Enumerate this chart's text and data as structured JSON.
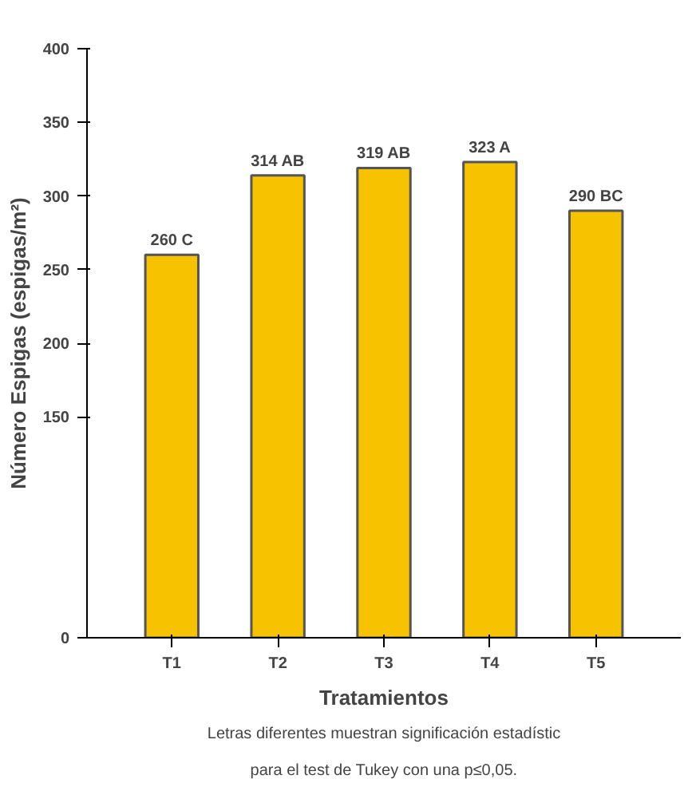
{
  "chart_data": {
    "type": "bar",
    "xlabel": "Tratamientos",
    "ylabel": "Número Espigas (espigas/m²)",
    "categories": [
      "T1",
      "T2",
      "T3",
      "T4",
      "T5"
    ],
    "values": [
      260,
      314,
      319,
      323,
      290
    ],
    "value_labels": [
      "260 C",
      "314 AB",
      "319 AB",
      "323 A",
      "290 BC"
    ],
    "color": "#f7c300",
    "ylim": [
      0,
      400
    ],
    "yticks": [
      0,
      150,
      200,
      250,
      300,
      350,
      400
    ],
    "grid": false,
    "annotations": [
      "Letras diferentes muestran significación estadístic\npara el test de Tukey con una p≤0,05."
    ]
  }
}
